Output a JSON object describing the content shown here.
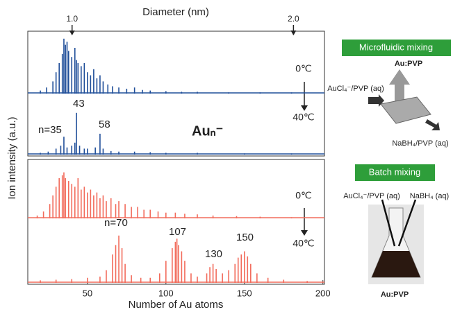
{
  "chart_data": {
    "type": "stick",
    "xlabel": "Number of Au atoms",
    "ylabel": "Ion intensity (a.u.)",
    "xlim": [
      12,
      201
    ],
    "xticks": [
      50,
      100,
      150,
      200
    ],
    "ylim": [
      0,
      1
    ],
    "top_axis": {
      "label": "Diameter (nm)",
      "xlim": [
        0.8,
        2.14
      ],
      "xticks": [
        {
          "value": 1.0,
          "label": "1.0"
        },
        {
          "value": 2.0,
          "label": "2.0"
        }
      ]
    },
    "species": "Auₙ⁻",
    "annotations": [
      "n=35",
      "43",
      "58",
      "n=70",
      "107",
      "130",
      "150"
    ],
    "panels": [
      {
        "label": "0℃",
        "color": "#1f4e99",
        "x": [
          20,
          24,
          28,
          30,
          32,
          34,
          35,
          36,
          37,
          38,
          40,
          42,
          43,
          44,
          46,
          48,
          50,
          52,
          54,
          56,
          58,
          60,
          63,
          66,
          70,
          75,
          80,
          85,
          90,
          100,
          110,
          120,
          140,
          160,
          180
        ],
        "values": [
          0.05,
          0.1,
          0.2,
          0.35,
          0.5,
          0.65,
          0.9,
          0.8,
          0.85,
          0.7,
          0.6,
          0.75,
          0.55,
          0.5,
          0.45,
          0.5,
          0.35,
          0.3,
          0.4,
          0.25,
          0.3,
          0.2,
          0.15,
          0.12,
          0.1,
          0.08,
          0.1,
          0.06,
          0.05,
          0.04,
          0.03,
          0.03,
          0.02,
          0.02,
          0.02
        ]
      },
      {
        "label": "40℃",
        "color": "#1f4e99",
        "x": [
          20,
          25,
          30,
          33,
          35,
          37,
          40,
          42,
          43,
          45,
          48,
          50,
          55,
          58,
          60,
          65,
          70,
          80,
          90,
          100,
          120,
          150,
          180
        ],
        "values": [
          0.03,
          0.05,
          0.1,
          0.15,
          0.3,
          0.12,
          0.15,
          0.2,
          0.7,
          0.15,
          0.1,
          0.1,
          0.12,
          0.35,
          0.1,
          0.06,
          0.05,
          0.05,
          0.04,
          0.03,
          0.03,
          0.02,
          0.02
        ]
      },
      {
        "label": "0℃",
        "color": "#f26b5b",
        "x": [
          18,
          22,
          26,
          28,
          30,
          32,
          34,
          35,
          36,
          38,
          40,
          42,
          44,
          46,
          48,
          50,
          52,
          54,
          56,
          58,
          60,
          62,
          65,
          68,
          70,
          74,
          78,
          82,
          86,
          90,
          95,
          100,
          106,
          112,
          120,
          130,
          145,
          160,
          180
        ],
        "values": [
          0.05,
          0.12,
          0.25,
          0.4,
          0.55,
          0.7,
          0.75,
          0.8,
          0.7,
          0.65,
          0.6,
          0.55,
          0.7,
          0.5,
          0.55,
          0.45,
          0.5,
          0.4,
          0.45,
          0.35,
          0.4,
          0.3,
          0.35,
          0.25,
          0.3,
          0.25,
          0.2,
          0.2,
          0.15,
          0.15,
          0.12,
          0.1,
          0.1,
          0.08,
          0.07,
          0.05,
          0.04,
          0.03,
          0.02
        ]
      },
      {
        "label": "40℃",
        "color": "#f26b5b",
        "x": [
          20,
          30,
          40,
          50,
          58,
          62,
          66,
          68,
          70,
          72,
          74,
          78,
          84,
          90,
          96,
          100,
          104,
          106,
          107,
          108,
          110,
          112,
          116,
          120,
          126,
          128,
          130,
          132,
          136,
          140,
          144,
          146,
          148,
          150,
          152,
          154,
          158,
          165,
          175,
          190
        ],
        "values": [
          0.04,
          0.05,
          0.06,
          0.08,
          0.1,
          0.2,
          0.45,
          0.6,
          0.75,
          0.55,
          0.3,
          0.12,
          0.08,
          0.08,
          0.15,
          0.35,
          0.55,
          0.65,
          0.7,
          0.6,
          0.5,
          0.35,
          0.15,
          0.1,
          0.15,
          0.25,
          0.3,
          0.22,
          0.15,
          0.2,
          0.3,
          0.4,
          0.45,
          0.5,
          0.42,
          0.3,
          0.15,
          0.08,
          0.05,
          0.03
        ]
      }
    ]
  },
  "diagram": {
    "micro_title": "Microfluidic mixing",
    "micro_product": "Au:PVP",
    "micro_in1": "AuCl₄⁻/PVP (aq)",
    "micro_in2": "NaBH₄/PVP (aq)",
    "batch_title": "Batch mixing",
    "batch_in1": "AuCl₄⁻/PVP (aq)",
    "batch_in2": "NaBH₄ (aq)",
    "batch_product": "Au:PVP"
  }
}
